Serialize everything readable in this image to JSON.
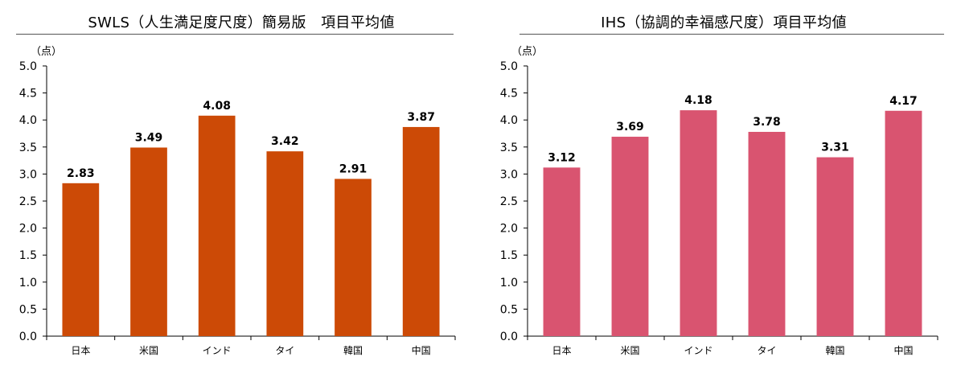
{
  "chart_data": [
    {
      "type": "bar",
      "title": "SWLS（人生満足度尺度）簡易版　項目平均値",
      "unit_label": "（点）",
      "categories": [
        "日本",
        "米国",
        "インド",
        "タイ",
        "韓国",
        "中国"
      ],
      "values": [
        2.83,
        3.49,
        4.08,
        3.42,
        2.91,
        3.87
      ],
      "data_labels": [
        "2.83",
        "3.49",
        "4.08",
        "3.42",
        "2.91",
        "3.87"
      ],
      "ylim": [
        0,
        5
      ],
      "yticks": [
        "0.0",
        "0.5",
        "1.0",
        "1.5",
        "2.0",
        "2.5",
        "3.0",
        "3.5",
        "4.0",
        "4.5",
        "5.0"
      ],
      "grid": false,
      "bar_color": "#cc4a06"
    },
    {
      "type": "bar",
      "title": "IHS（協調的幸福感尺度）項目平均値",
      "unit_label": "（点）",
      "categories": [
        "日本",
        "米国",
        "インド",
        "タイ",
        "韓国",
        "中国"
      ],
      "values": [
        3.12,
        3.69,
        4.18,
        3.78,
        3.31,
        4.17
      ],
      "data_labels": [
        "3.12",
        "3.69",
        "4.18",
        "3.78",
        "3.31",
        "4.17"
      ],
      "ylim": [
        0,
        5
      ],
      "yticks": [
        "0.0",
        "0.5",
        "1.0",
        "1.5",
        "2.0",
        "2.5",
        "3.0",
        "3.5",
        "4.0",
        "4.5",
        "5.0"
      ],
      "grid": false,
      "bar_color": "#d95470"
    }
  ]
}
